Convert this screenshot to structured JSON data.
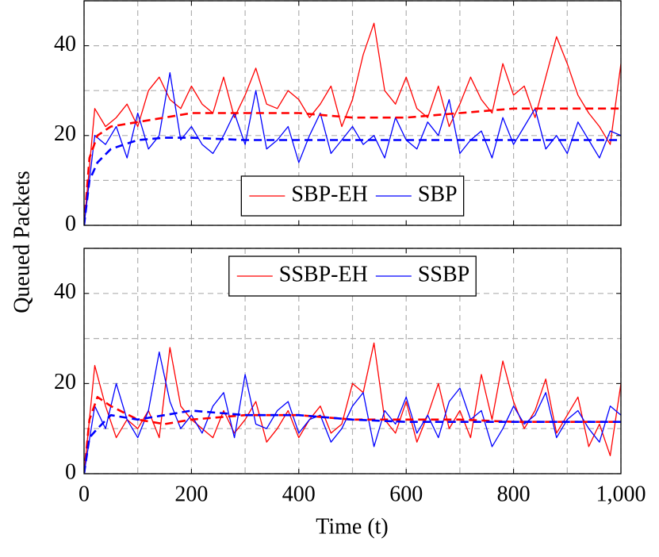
{
  "chart_data": [
    {
      "type": "line",
      "ylabel": "Queued Packets",
      "xlim": [
        0,
        1000
      ],
      "ylim": [
        0,
        50
      ],
      "xticks": [
        0,
        200,
        400,
        600,
        800,
        {
          "value": 1000,
          "label": "1,000"
        }
      ],
      "show_xtick_labels": false,
      "minor_xticks": [
        100,
        300,
        500,
        700,
        900
      ],
      "yticks": [
        0,
        20,
        40
      ],
      "minor_yticks": [
        10,
        30,
        50
      ],
      "grid": true,
      "legend": "lower center",
      "x": [
        0,
        20,
        40,
        60,
        80,
        100,
        120,
        140,
        160,
        180,
        200,
        220,
        240,
        260,
        280,
        300,
        320,
        340,
        360,
        380,
        400,
        420,
        440,
        460,
        480,
        500,
        520,
        540,
        560,
        580,
        600,
        620,
        640,
        660,
        680,
        700,
        720,
        740,
        760,
        780,
        800,
        820,
        840,
        860,
        880,
        900,
        920,
        940,
        960,
        980,
        1000
      ],
      "series": [
        {
          "name": "SBP-EH",
          "color": "#ff0000",
          "values": [
            0,
            26,
            22,
            24,
            27,
            22,
            30,
            33,
            28,
            26,
            31,
            27,
            25,
            33,
            24,
            29,
            35,
            27,
            26,
            30,
            28,
            24,
            27,
            31,
            22,
            28,
            38,
            45,
            30,
            27,
            33,
            26,
            24,
            31,
            22,
            27,
            33,
            28,
            25,
            36,
            29,
            31,
            24,
            33,
            42,
            36,
            29,
            25,
            22,
            18,
            36
          ]
        },
        {
          "name": "SBP",
          "color": "#0000ff",
          "values": [
            0,
            20,
            18,
            22,
            15,
            25,
            17,
            20,
            34,
            19,
            22,
            18,
            16,
            20,
            25,
            18,
            30,
            17,
            19,
            22,
            14,
            20,
            25,
            16,
            19,
            22,
            18,
            20,
            15,
            24,
            19,
            17,
            23,
            20,
            28,
            16,
            19,
            21,
            15,
            24,
            18,
            22,
            26,
            17,
            20,
            16,
            23,
            19,
            15,
            21,
            20
          ]
        },
        {
          "color": "#ff0000",
          "dashed": true,
          "x": [
            0,
            10,
            25,
            50,
            100,
            150,
            200,
            300,
            400,
            500,
            600,
            700,
            800,
            900,
            1000
          ],
          "values": [
            0,
            15,
            20,
            22,
            23,
            24,
            25,
            25,
            25,
            24,
            24,
            25,
            26,
            26,
            26
          ]
        },
        {
          "color": "#0000ff",
          "dashed": true,
          "x": [
            0,
            10,
            25,
            50,
            100,
            150,
            200,
            300,
            400,
            500,
            600,
            700,
            800,
            900,
            1000
          ],
          "values": [
            0,
            10,
            14,
            17,
            19,
            19.5,
            19.5,
            19,
            19,
            19,
            19,
            19,
            19,
            19,
            19
          ]
        }
      ]
    },
    {
      "type": "line",
      "xlabel": "Time (t)",
      "xlim": [
        0,
        1000
      ],
      "ylim": [
        0,
        50
      ],
      "xticks": [
        0,
        200,
        400,
        600,
        800,
        {
          "value": 1000,
          "label": "1,000"
        }
      ],
      "show_xtick_labels": true,
      "minor_xticks": [
        100,
        300,
        500,
        700,
        900
      ],
      "yticks": [
        0,
        20,
        40
      ],
      "minor_yticks": [
        10,
        30,
        50
      ],
      "grid": true,
      "legend": "upper center",
      "x": [
        0,
        20,
        40,
        60,
        80,
        100,
        120,
        140,
        160,
        180,
        200,
        220,
        240,
        260,
        280,
        300,
        320,
        340,
        360,
        380,
        400,
        420,
        440,
        460,
        480,
        500,
        520,
        540,
        560,
        580,
        600,
        620,
        640,
        660,
        680,
        700,
        720,
        740,
        760,
        780,
        800,
        820,
        840,
        860,
        880,
        900,
        920,
        940,
        960,
        980,
        1000
      ],
      "series": [
        {
          "name": "SSBP-EH",
          "color": "#ff0000",
          "values": [
            0,
            24,
            15,
            8,
            12,
            10,
            14,
            8,
            28,
            15,
            12,
            10,
            8,
            14,
            9,
            12,
            16,
            7,
            10,
            14,
            8,
            12,
            15,
            9,
            11,
            20,
            18,
            29,
            12,
            9,
            16,
            7,
            13,
            20,
            10,
            14,
            8,
            22,
            12,
            25,
            16,
            10,
            14,
            21,
            9,
            13,
            17,
            6,
            11,
            4,
            20
          ]
        },
        {
          "name": "SSBP",
          "color": "#0000ff",
          "values": [
            0,
            15,
            10,
            20,
            12,
            8,
            14,
            27,
            16,
            10,
            13,
            9,
            15,
            18,
            8,
            22,
            11,
            10,
            14,
            16,
            9,
            12,
            13,
            7,
            10,
            15,
            18,
            6,
            14,
            11,
            17,
            9,
            13,
            8,
            16,
            19,
            12,
            14,
            6,
            10,
            15,
            11,
            13,
            18,
            8,
            12,
            14,
            10,
            7,
            15,
            13
          ]
        },
        {
          "color": "#ff0000",
          "dashed": true,
          "x": [
            0,
            10,
            25,
            50,
            100,
            150,
            200,
            300,
            400,
            500,
            600,
            700,
            800,
            900,
            1000
          ],
          "values": [
            0,
            12,
            17,
            15,
            12,
            11,
            12,
            13,
            13,
            12,
            12,
            12,
            11.5,
            11.5,
            11.5
          ]
        },
        {
          "color": "#0000ff",
          "dashed": true,
          "x": [
            0,
            10,
            25,
            50,
            100,
            150,
            200,
            300,
            400,
            500,
            600,
            700,
            800,
            900,
            1000
          ],
          "values": [
            0,
            8,
            10,
            13,
            12,
            13,
            14,
            13,
            13,
            12,
            11.5,
            11.5,
            11.5,
            11.5,
            11.5
          ]
        }
      ]
    }
  ]
}
